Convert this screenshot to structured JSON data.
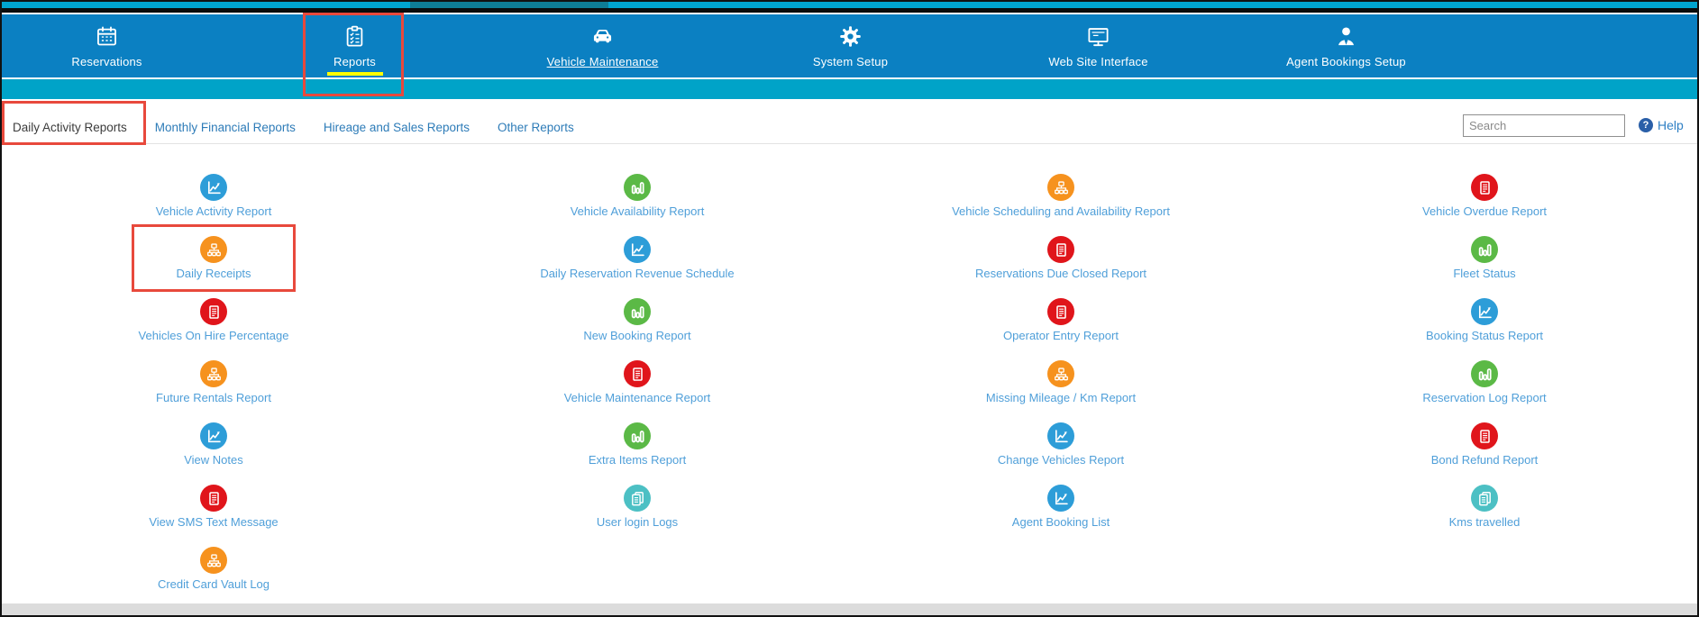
{
  "nav": {
    "background": "#0b80c2",
    "active_underline_color": "#ffff00",
    "items": [
      {
        "label": "Reservations",
        "icon": "calendar-icon"
      },
      {
        "label": "Reports",
        "icon": "clipboard-checklist-icon",
        "active": true,
        "annotated": true
      },
      {
        "label": "Vehicle Maintenance",
        "icon": "car-icon",
        "underlined": true
      },
      {
        "label": "System Setup",
        "icon": "gear-icon"
      },
      {
        "label": "Web Site Interface",
        "icon": "monitor-icon"
      },
      {
        "label": "Agent Bookings Setup",
        "icon": "person-icon"
      }
    ]
  },
  "subnav": {
    "tabs": [
      {
        "label": "Daily Activity Reports",
        "active": true,
        "annotated": true
      },
      {
        "label": "Monthly Financial Reports"
      },
      {
        "label": "Hireage and Sales Reports"
      },
      {
        "label": "Other Reports"
      }
    ],
    "search": {
      "placeholder": "Search"
    },
    "help": {
      "label": "Help",
      "icon": "question-circle-icon",
      "icon_color": "#2a5fa8"
    }
  },
  "reports_grid": {
    "label_color": "#4f9fd9",
    "icon_colors": {
      "blue": "#2d9dd8",
      "green": "#5bb946",
      "orange": "#f6921e",
      "red": "#e0151b",
      "teal": "#4cc0c4"
    },
    "columns": [
      [
        {
          "label": "Vehicle Activity Report",
          "icon": "line-chart-icon",
          "color": "#2d9dd8"
        },
        {
          "label": "Daily Receipts",
          "icon": "sitemap-icon",
          "color": "#f6921e",
          "annotated": true
        },
        {
          "label": "Vehicles On Hire Percentage",
          "icon": "document-icon",
          "color": "#e0151b"
        },
        {
          "label": "Future Rentals Report",
          "icon": "sitemap-icon",
          "color": "#f6921e"
        },
        {
          "label": "View Notes",
          "icon": "line-chart-icon",
          "color": "#2d9dd8"
        },
        {
          "label": "View SMS Text Message",
          "icon": "document-icon",
          "color": "#e0151b"
        },
        {
          "label": "Credit Card Vault Log",
          "icon": "sitemap-icon",
          "color": "#f6921e"
        }
      ],
      [
        {
          "label": "Vehicle Availability Report",
          "icon": "bar-chart-icon",
          "color": "#5bb946"
        },
        {
          "label": "Daily Reservation Revenue Schedule",
          "icon": "line-chart-icon",
          "color": "#2d9dd8"
        },
        {
          "label": "New Booking Report",
          "icon": "bar-chart-icon",
          "color": "#5bb946"
        },
        {
          "label": "Vehicle Maintenance Report",
          "icon": "document-icon",
          "color": "#e0151b"
        },
        {
          "label": "Extra Items Report",
          "icon": "bar-chart-icon",
          "color": "#5bb946"
        },
        {
          "label": "User login Logs",
          "icon": "copy-pages-icon",
          "color": "#4cc0c4"
        }
      ],
      [
        {
          "label": "Vehicle Scheduling and Availability Report",
          "icon": "sitemap-icon",
          "color": "#f6921e"
        },
        {
          "label": "Reservations Due Closed Report",
          "icon": "document-icon",
          "color": "#e0151b"
        },
        {
          "label": "Operator Entry Report",
          "icon": "document-icon",
          "color": "#e0151b"
        },
        {
          "label": "Missing Mileage / Km Report",
          "icon": "sitemap-icon",
          "color": "#f6921e"
        },
        {
          "label": "Change Vehicles Report",
          "icon": "line-chart-icon",
          "color": "#2d9dd8"
        },
        {
          "label": "Agent Booking List",
          "icon": "line-chart-icon",
          "color": "#2d9dd8"
        }
      ],
      [
        {
          "label": "Vehicle Overdue Report",
          "icon": "document-icon",
          "color": "#e0151b"
        },
        {
          "label": "Fleet Status",
          "icon": "bar-chart-icon",
          "color": "#5bb946"
        },
        {
          "label": "Booking Status Report",
          "icon": "line-chart-icon",
          "color": "#2d9dd8"
        },
        {
          "label": "Reservation Log Report",
          "icon": "bar-chart-icon",
          "color": "#5bb946"
        },
        {
          "label": "Bond Refund Report",
          "icon": "document-icon",
          "color": "#e0151b"
        },
        {
          "label": "Kms travelled",
          "icon": "copy-pages-icon",
          "color": "#4cc0c4"
        }
      ]
    ]
  },
  "annotations": {
    "color": "#e8493c",
    "highlighted": [
      "Reports",
      "Daily Activity Reports",
      "Daily Receipts"
    ]
  }
}
